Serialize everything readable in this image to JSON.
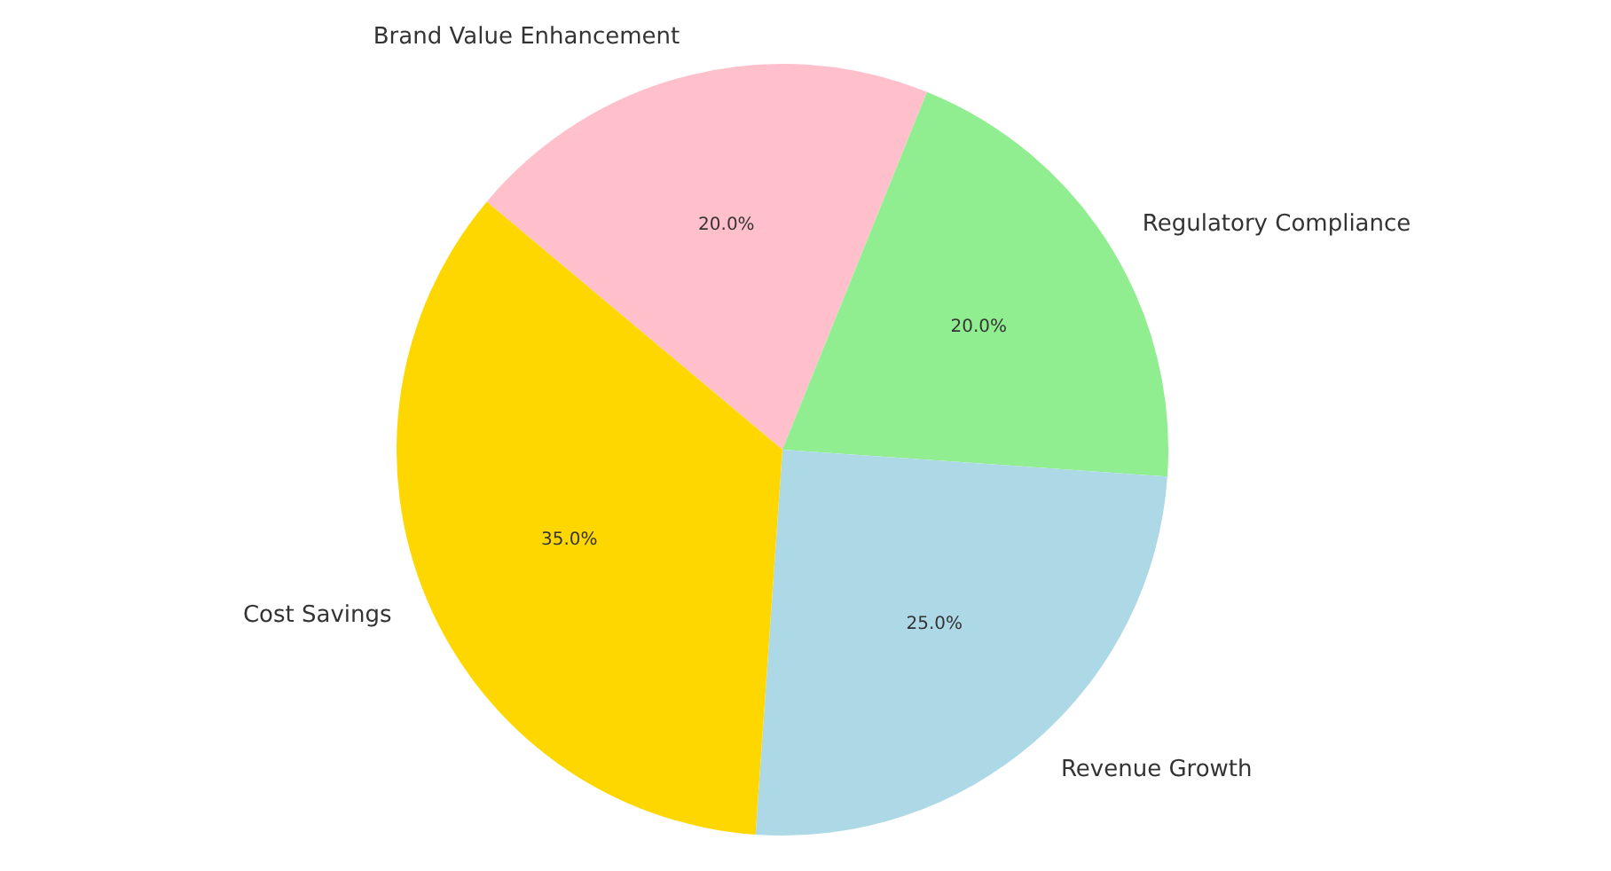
{
  "chart_data": {
    "type": "pie",
    "categories": [
      "Brand Value Enhancement",
      "Regulatory Compliance",
      "Revenue Growth",
      "Cost Savings"
    ],
    "values": [
      20,
      20,
      25,
      35
    ],
    "colors": [
      "#ffc0cb",
      "#90ee90",
      "#add8e6",
      "#ffd700"
    ],
    "value_labels": [
      "20.0%",
      "20.0%",
      "25.0%",
      "35.0%"
    ],
    "legend": false
  }
}
